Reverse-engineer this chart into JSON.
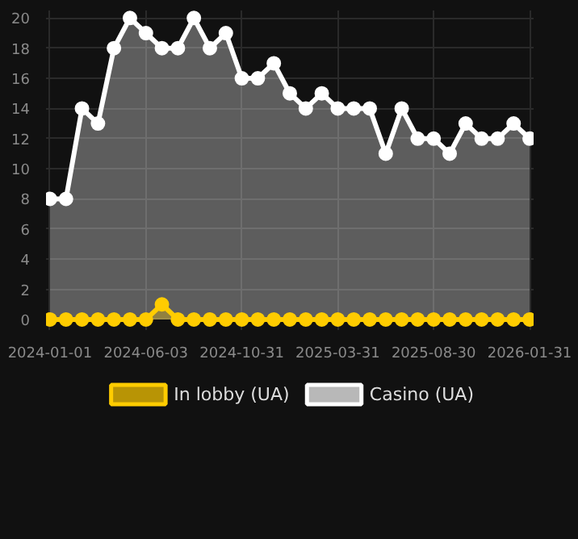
{
  "chart_data": {
    "type": "area",
    "categories": [
      "2024-01-01",
      null,
      null,
      null,
      null,
      null,
      "2024-06-03",
      null,
      null,
      null,
      null,
      null,
      "2024-10-31",
      null,
      null,
      null,
      null,
      null,
      "2025-03-31",
      null,
      null,
      null,
      null,
      null,
      "2025-08-30",
      null,
      null,
      null,
      null,
      null,
      "2026-01-31"
    ],
    "series": [
      {
        "name": "In lobby (UA)",
        "color": "#ffcc00",
        "values": [
          0,
          0,
          0,
          0,
          0,
          0,
          0,
          1,
          0,
          0,
          0,
          0,
          0,
          0,
          0,
          0,
          0,
          0,
          0,
          0,
          0,
          0,
          0,
          0,
          0,
          0,
          0,
          0,
          0,
          0,
          0
        ]
      },
      {
        "name": "Casino (UA)",
        "color": "#ffffff",
        "values": [
          8,
          8,
          14,
          13,
          18,
          20,
          19,
          18,
          18,
          20,
          18,
          19,
          16,
          16,
          17,
          15,
          14,
          15,
          14,
          14,
          14,
          11,
          14,
          12,
          12,
          11,
          13,
          12,
          12,
          13,
          12
        ]
      }
    ],
    "ylim": [
      -0.7,
      20.5
    ],
    "yticks": [
      0,
      2,
      4,
      6,
      8,
      10,
      12,
      14,
      16,
      18,
      20
    ],
    "grid": true,
    "legend": "bottom",
    "marker": "circle",
    "line_style": "solid"
  }
}
